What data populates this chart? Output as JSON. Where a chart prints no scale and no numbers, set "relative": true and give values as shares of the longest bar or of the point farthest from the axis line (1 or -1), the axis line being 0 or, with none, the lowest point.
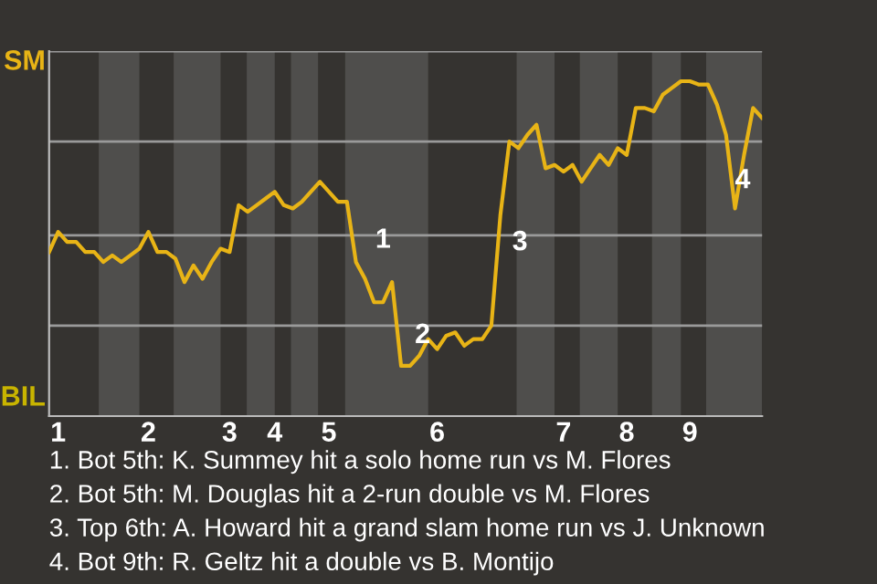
{
  "chart_data": {
    "type": "line",
    "categories": [
      null,
      "1",
      null,
      null,
      null,
      null,
      null,
      null,
      null,
      null,
      null,
      "2",
      null,
      null,
      null,
      null,
      null,
      null,
      null,
      null,
      "3",
      null,
      null,
      null,
      null,
      "4",
      null,
      null,
      null,
      null,
      null,
      "5",
      null,
      null,
      null,
      null,
      null,
      null,
      null,
      null,
      null,
      null,
      null,
      "6",
      null,
      null,
      null,
      null,
      null,
      null,
      null,
      null,
      null,
      null,
      null,
      null,
      null,
      "7",
      null,
      null,
      null,
      null,
      null,
      null,
      "8",
      null,
      null,
      null,
      null,
      null,
      null,
      "9",
      null,
      null,
      null,
      null,
      null,
      null,
      null,
      null
    ],
    "series": [
      {
        "color": "#e8b416",
        "values": [
          0.49,
          0.55,
          0.52,
          0.52,
          0.49,
          0.49,
          0.46,
          0.48,
          0.46,
          0.48,
          0.5,
          0.55,
          0.49,
          0.49,
          0.47,
          0.4,
          0.45,
          0.41,
          0.46,
          0.5,
          0.49,
          0.63,
          0.61,
          0.63,
          0.65,
          0.67,
          0.63,
          0.62,
          0.64,
          0.67,
          0.7,
          0.67,
          0.64,
          0.64,
          0.46,
          0.41,
          0.34,
          0.34,
          0.4,
          0.15,
          0.15,
          0.18,
          0.23,
          0.2,
          0.24,
          0.25,
          0.21,
          0.23,
          0.23,
          0.27,
          0.6,
          0.82,
          0.8,
          0.84,
          0.87,
          0.74,
          0.75,
          0.73,
          0.75,
          0.7,
          0.74,
          0.78,
          0.75,
          0.8,
          0.78,
          0.92,
          0.92,
          0.91,
          0.96,
          0.98,
          1,
          1,
          0.99,
          0.99,
          0.93,
          0.84,
          0.62,
          0.78,
          0.92,
          0.89
        ]
      }
    ],
    "relative": true,
    "ref_lines": [
      {
        "axis": "y",
        "value": 0.27,
        "color": "#9a9a9a"
      },
      {
        "axis": "y",
        "value": 0.54,
        "color": "#9a9a9a"
      },
      {
        "axis": "y",
        "value": 0.82,
        "color": "#9a9a9a"
      },
      {
        "axis": "y",
        "value": 1.09,
        "color": "#9a9a9a"
      }
    ],
    "annotations": [
      "SM",
      "BIL",
      "1",
      "2",
      "3",
      "4",
      "1. Bot 5th: K. Summey hit a solo home run vs M. Flores",
      "2. Bot 5th: M. Douglas hit a 2-run double vs M. Flores",
      "3. Top 6th: A. Howard hit a grand slam home run vs J. Unknown",
      "4. Bot 9th: R. Geltz hit a double vs B. Montijo"
    ],
    "line_style": "solid"
  }
}
